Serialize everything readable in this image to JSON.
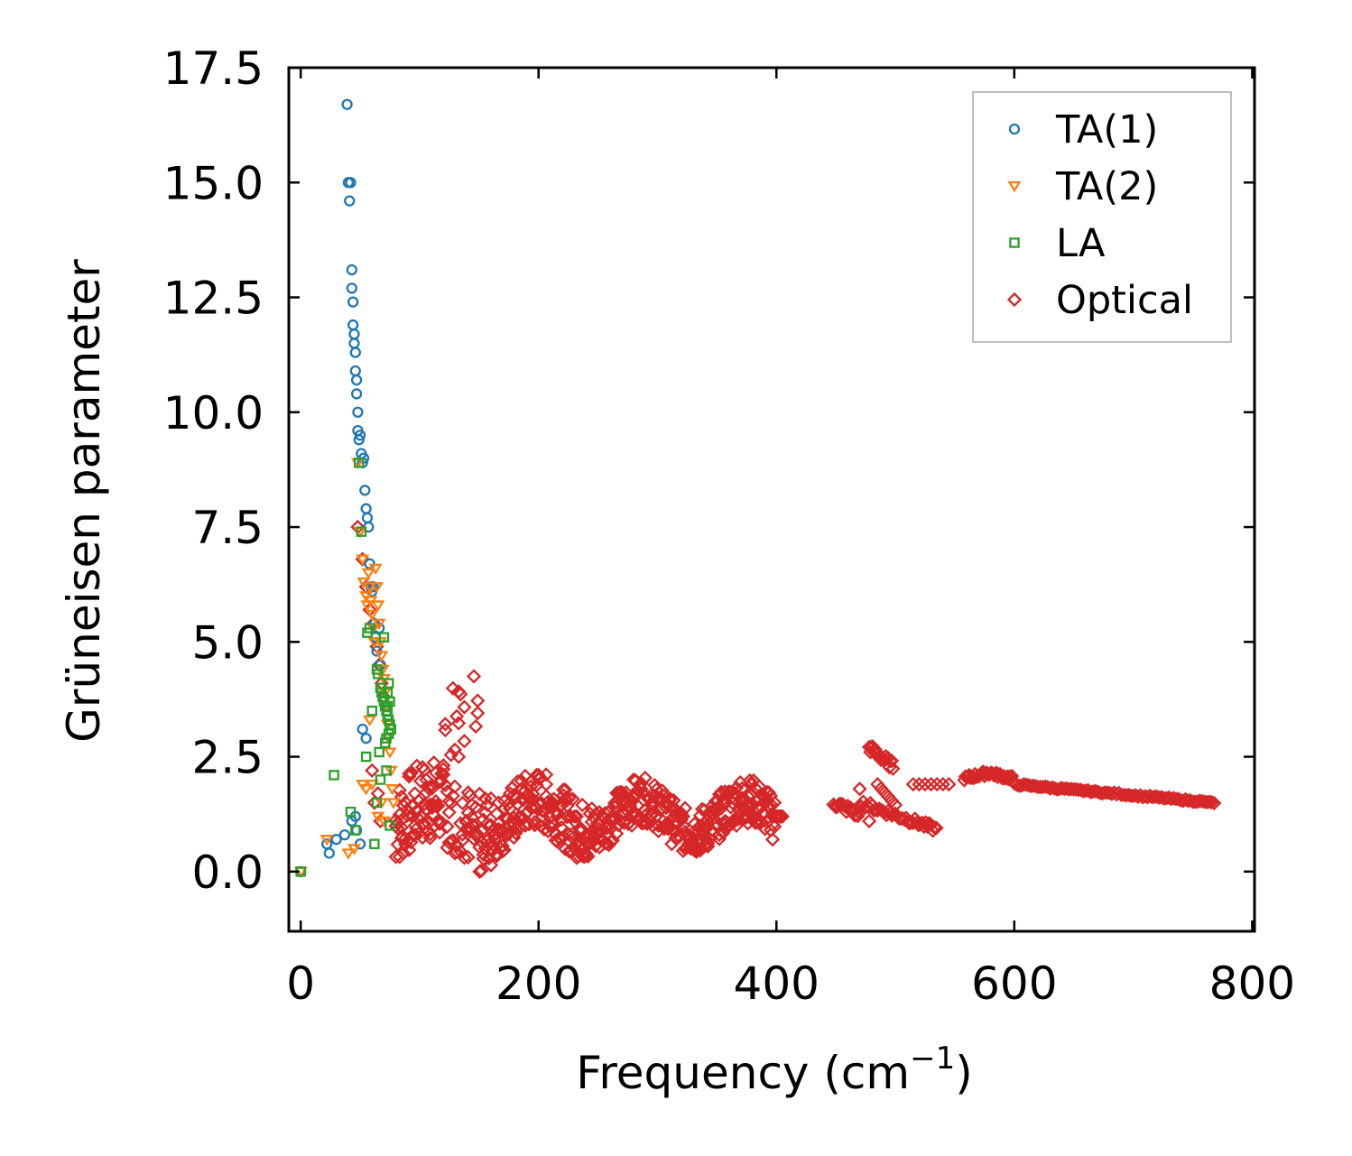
{
  "chart_data": {
    "type": "scatter",
    "title": "",
    "xlabel": "Frequency (cm",
    "xlabel_sup": "−1",
    "xlabel_end": ")",
    "ylabel": "Grüneisen parameter",
    "xlim": [
      -10,
      802
    ],
    "ylim": [
      -1.3,
      17.5
    ],
    "xticks": [
      0,
      200,
      400,
      600,
      800
    ],
    "xtick_labels": [
      "0",
      "200",
      "400",
      "600",
      "800"
    ],
    "yticks": [
      0,
      2.5,
      5,
      7.5,
      10,
      12.5,
      15,
      17.5
    ],
    "ytick_labels": [
      "0.0",
      "2.5",
      "5.0",
      "7.5",
      "10.0",
      "12.5",
      "15.0",
      "17.5"
    ],
    "grid": false,
    "legend_position": "top-right",
    "series": [
      {
        "name": "TA(1)",
        "marker": "circle",
        "color": "#1f77b4",
        "points": [
          [
            0,
            0
          ],
          [
            22,
            0.6
          ],
          [
            24,
            0.4
          ],
          [
            30,
            0.7
          ],
          [
            37,
            0.8
          ],
          [
            43,
            1.1
          ],
          [
            46,
            1.2
          ],
          [
            47,
            0.9
          ],
          [
            50,
            0.6
          ],
          [
            52,
            3.1
          ],
          [
            55,
            2.9
          ],
          [
            39,
            16.7
          ],
          [
            40,
            15.0
          ],
          [
            41,
            14.6
          ],
          [
            42,
            15.0
          ],
          [
            43,
            13.1
          ],
          [
            43,
            12.7
          ],
          [
            44,
            12.4
          ],
          [
            44,
            11.9
          ],
          [
            45,
            11.7
          ],
          [
            45,
            11.5
          ],
          [
            46,
            11.3
          ],
          [
            46,
            10.9
          ],
          [
            47,
            10.7
          ],
          [
            47,
            10.4
          ],
          [
            48,
            10.0
          ],
          [
            48,
            9.6
          ],
          [
            49,
            9.4
          ],
          [
            50,
            9.5
          ],
          [
            51,
            9.1
          ],
          [
            52,
            8.9
          ],
          [
            53,
            9.0
          ],
          [
            54,
            8.3
          ],
          [
            55,
            7.9
          ],
          [
            56,
            7.7
          ],
          [
            57,
            7.5
          ],
          [
            58,
            6.7
          ],
          [
            59,
            6.2
          ],
          [
            60,
            6.1
          ],
          [
            61,
            6.2
          ],
          [
            62,
            5.4
          ],
          [
            63,
            5.1
          ],
          [
            64,
            4.8
          ],
          [
            66,
            5.3
          ],
          [
            67,
            4.5
          ]
        ]
      },
      {
        "name": "TA(2)",
        "marker": "triangle-down",
        "color": "#ff7f0e",
        "points": [
          [
            0,
            0
          ],
          [
            22,
            0.7
          ],
          [
            40,
            0.4
          ],
          [
            45,
            0.5
          ],
          [
            48,
            8.9
          ],
          [
            50,
            7.4
          ],
          [
            52,
            6.8
          ],
          [
            53,
            6.3
          ],
          [
            55,
            6.0
          ],
          [
            56,
            5.8
          ],
          [
            57,
            6.5
          ],
          [
            58,
            6.2
          ],
          [
            59,
            5.9
          ],
          [
            60,
            5.6
          ],
          [
            61,
            5.3
          ],
          [
            62,
            5.0
          ],
          [
            63,
            6.6
          ],
          [
            64,
            6.2
          ],
          [
            65,
            5.8
          ],
          [
            66,
            5.4
          ],
          [
            67,
            5.0
          ],
          [
            68,
            4.7
          ],
          [
            69,
            4.4
          ],
          [
            70,
            4.2
          ],
          [
            71,
            3.9
          ],
          [
            72,
            3.6
          ],
          [
            73,
            3.2
          ],
          [
            74,
            2.9
          ],
          [
            75,
            2.6
          ],
          [
            76,
            2.2
          ],
          [
            77,
            1.8
          ],
          [
            78,
            1.5
          ],
          [
            58,
            3.3
          ],
          [
            60,
            1.9
          ],
          [
            55,
            1.8
          ],
          [
            52,
            1.9
          ],
          [
            65,
            1.2
          ],
          [
            70,
            1.1
          ],
          [
            68,
            1.5
          ]
        ]
      },
      {
        "name": "LA",
        "marker": "square",
        "color": "#2ca02c",
        "points": [
          [
            0,
            0
          ],
          [
            28,
            2.1
          ],
          [
            42,
            1.3
          ],
          [
            46,
            0.9
          ],
          [
            49,
            8.9
          ],
          [
            51,
            7.4
          ],
          [
            55,
            2.5
          ],
          [
            56,
            5.2
          ],
          [
            58,
            5.3
          ],
          [
            60,
            3.5
          ],
          [
            62,
            0.6
          ],
          [
            64,
            4.4
          ],
          [
            65,
            4.3
          ],
          [
            66,
            2.6
          ],
          [
            67,
            4.0
          ],
          [
            68,
            3.9
          ],
          [
            69,
            3.8
          ],
          [
            70,
            3.7
          ],
          [
            71,
            3.6
          ],
          [
            72,
            3.5
          ],
          [
            73,
            3.4
          ],
          [
            74,
            3.3
          ],
          [
            75,
            3.2
          ],
          [
            76,
            3.1
          ],
          [
            72,
            2.9
          ],
          [
            73,
            3.9
          ],
          [
            74,
            4.1
          ],
          [
            70,
            5.1
          ],
          [
            67,
            2.0
          ],
          [
            64,
            1.5
          ],
          [
            75,
            1.0
          ],
          [
            72,
            2.2
          ],
          [
            74,
            3.0
          ],
          [
            71,
            2.8
          ],
          [
            73,
            3.6
          ],
          [
            75,
            3.7
          ]
        ]
      },
      {
        "name": "Optical",
        "marker": "diamond",
        "color": "#d62728",
        "points": []
      }
    ]
  }
}
